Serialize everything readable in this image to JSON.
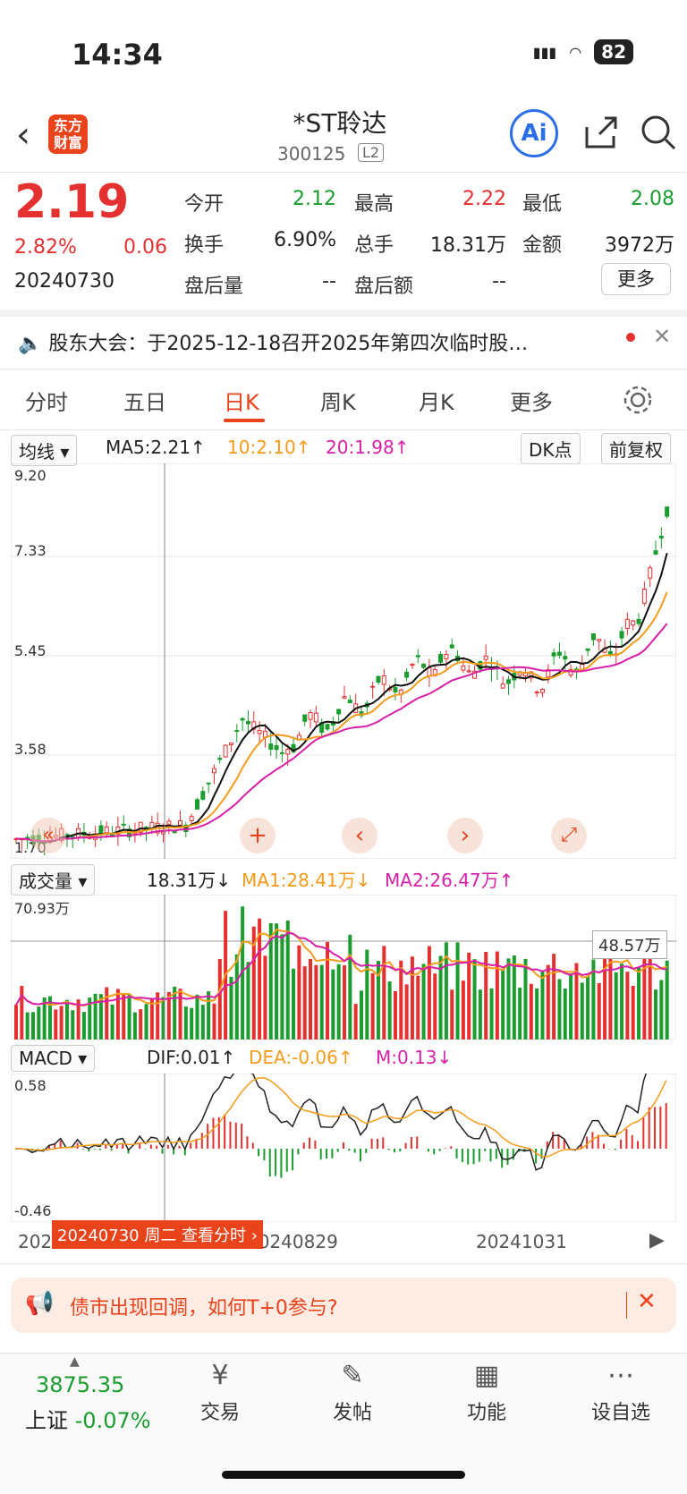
{
  "status": {
    "time": "14:34",
    "battery": "82"
  },
  "header": {
    "logo": "东方财富",
    "name": "*ST聆达",
    "code": "300125",
    "level": "L2"
  },
  "quote": {
    "price": "2.19",
    "pct": "2.82%",
    "change": "0.06",
    "date": "20240730",
    "fields": [
      {
        "label": "今开",
        "value": "2.12",
        "color": "green"
      },
      {
        "label": "最高",
        "value": "2.22",
        "color": "red"
      },
      {
        "label": "最低",
        "value": "2.08",
        "color": "green"
      },
      {
        "label": "换手",
        "value": "6.90%",
        "color": "black"
      },
      {
        "label": "总手",
        "value": "18.31万",
        "color": "black"
      },
      {
        "label": "金额",
        "value": "3972万",
        "color": "black"
      },
      {
        "label": "盘后量",
        "value": "--",
        "color": "black"
      },
      {
        "label": "盘后额",
        "value": "--",
        "color": "black"
      }
    ],
    "more": "更多"
  },
  "notice": {
    "text": "股东大会：于2025-12-18召开2025年第四次临时股…"
  },
  "tabs": [
    "分时",
    "五日",
    "日K",
    "周K",
    "月K",
    "更多"
  ],
  "active_tab": 2,
  "kline": {
    "selector": "均线",
    "ma5": "MA5:2.21↑",
    "ma10": "10:2.10↑",
    "ma20": "20:1.98↑",
    "dk": "DK点",
    "adjust": "前复权",
    "y_labels": [
      "9.20",
      "7.33",
      "5.45",
      "3.58",
      "1.70"
    ]
  },
  "volume": {
    "selector": "成交量",
    "vol": "18.31万↓",
    "ma1": "MA1:28.41万↓",
    "ma2": "MA2:26.47万↑",
    "top_label": "70.93万",
    "ref_label": "48.57万"
  },
  "macd": {
    "selector": "MACD",
    "dif": "DIF:0.01↑",
    "dea": "DEA:-0.06↑",
    "m": "M:0.13↓",
    "top_label": "0.58",
    "bottom_label": "-0.46"
  },
  "dates": {
    "d1": "20240626",
    "d2": "20240829",
    "d3": "20241031",
    "cursor": "20240730 周二 查看分时"
  },
  "banner": {
    "text": "债市出现回调，如何T+0参与?"
  },
  "index": {
    "value": "3875.35",
    "name": "上证",
    "pct": "-0.07%"
  },
  "nav": [
    {
      "label": "交易",
      "icon": "¥"
    },
    {
      "label": "发帖",
      "icon": "✎"
    },
    {
      "label": "功能",
      "icon": "▦"
    },
    {
      "label": "设自选",
      "icon": "⋯"
    }
  ],
  "colors": {
    "up": "#e53030",
    "down": "#1a9c2e",
    "ma5": "#111111",
    "ma10": "#f59b1a",
    "ma20": "#d81fa8",
    "accent": "#e8431b"
  }
}
